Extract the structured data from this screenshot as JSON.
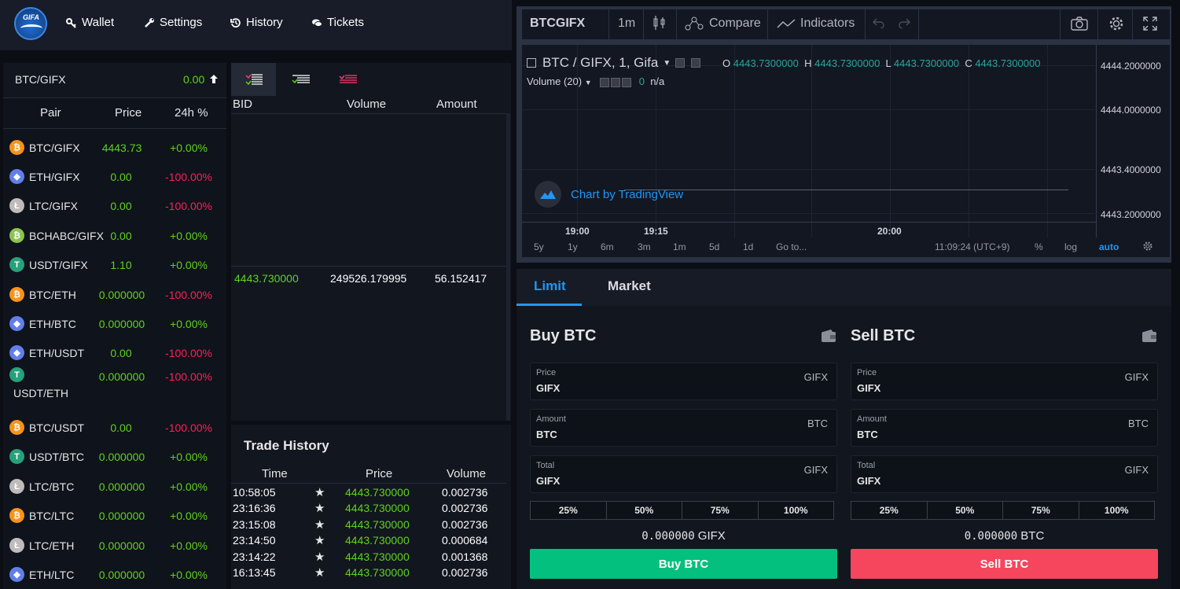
{
  "nav": {
    "logo_text": "GIFA",
    "items": [
      {
        "label": "Wallet",
        "icon": "key-icon"
      },
      {
        "label": "Settings",
        "icon": "wrench-icon"
      },
      {
        "label": "History",
        "icon": "history-icon"
      },
      {
        "label": "Tickets",
        "icon": "chat-icon"
      }
    ]
  },
  "market": {
    "selected_pair": "BTC/GIFX",
    "selected_value": "0.00",
    "columns": [
      "Pair",
      "Price",
      "24h %"
    ],
    "rows": [
      {
        "coin": "btc",
        "pair": "BTC/GIFX",
        "price": "4443.73",
        "change": "+0.00%"
      },
      {
        "coin": "eth",
        "pair": "ETH/GIFX",
        "price": "0.00",
        "change": "-100.00%"
      },
      {
        "coin": "ltc",
        "pair": "LTC/GIFX",
        "price": "0.00",
        "change": "-100.00%"
      },
      {
        "coin": "bch",
        "pair": "BCHABC/GIFX",
        "price": "0.00",
        "change": "+0.00%"
      },
      {
        "coin": "usdt",
        "pair": "USDT/GIFX",
        "price": "1.10",
        "change": "+0.00%"
      },
      {
        "coin": "btc",
        "pair": "BTC/ETH",
        "price": "0.000000",
        "change": "-100.00%"
      },
      {
        "coin": "eth",
        "pair": "ETH/BTC",
        "price": "0.000000",
        "change": "+0.00%"
      },
      {
        "coin": "eth",
        "pair": "ETH/USDT",
        "price": "0.00",
        "change": "-100.00%"
      },
      {
        "coin": "usdt",
        "pair": "USDT/ETH",
        "price": "0.000000",
        "change": "-100.00%"
      },
      {
        "coin": "btc",
        "pair": "BTC/USDT",
        "price": "0.00",
        "change": "-100.00%"
      },
      {
        "coin": "usdt",
        "pair": "USDT/BTC",
        "price": "0.000000",
        "change": "+0.00%"
      },
      {
        "coin": "ltc",
        "pair": "LTC/BTC",
        "price": "0.000000",
        "change": "+0.00%"
      },
      {
        "coin": "btc",
        "pair": "BTC/LTC",
        "price": "0.000000",
        "change": "+0.00%"
      },
      {
        "coin": "ltc",
        "pair": "LTC/ETH",
        "price": "0.000000",
        "change": "+0.00%"
      },
      {
        "coin": "eth",
        "pair": "ETH/LTC",
        "price": "0.000000",
        "change": "+0.00%"
      }
    ]
  },
  "orderbook": {
    "columns": [
      "BID",
      "Volume",
      "Amount"
    ],
    "row": {
      "bid": "4443.730000",
      "volume": "249526.179995",
      "amount": "56.152417"
    }
  },
  "trade_history": {
    "title": "Trade History",
    "columns": [
      "Time",
      "Price",
      "Volume"
    ],
    "rows": [
      {
        "time": "10:58:05",
        "price": "4443.730000",
        "volume": "0.002736"
      },
      {
        "time": "23:16:36",
        "price": "4443.730000",
        "volume": "0.002736"
      },
      {
        "time": "23:15:08",
        "price": "4443.730000",
        "volume": "0.002736"
      },
      {
        "time": "23:14:50",
        "price": "4443.730000",
        "volume": "0.000684"
      },
      {
        "time": "23:14:22",
        "price": "4443.730000",
        "volume": "0.001368"
      },
      {
        "time": "16:13:45",
        "price": "4443.730000",
        "volume": "0.002736"
      }
    ]
  },
  "chart": {
    "symbol": "BTCGIFX",
    "interval": "1m",
    "compare_label": "Compare",
    "indicators_label": "Indicators",
    "legend_title": "BTC / GIFX, 1, Gifa",
    "ohlc": {
      "o_label": "O",
      "o": "4443.7300000",
      "h_label": "H",
      "h": "4443.7300000",
      "l_label": "L",
      "l": "4443.7300000",
      "c_label": "C",
      "c": "4443.7300000"
    },
    "volume_label": "Volume (20)",
    "volume_value": "0",
    "volume_na": "n/a",
    "watermark": "Chart by TradingView",
    "price_labels": [
      "4444.2000000",
      "4444.0000000",
      "4443.4000000",
      "4443.2000000"
    ],
    "time_labels": [
      "19:00",
      "19:15",
      "20:00"
    ],
    "ranges": [
      "5y",
      "1y",
      "6m",
      "3m",
      "1m",
      "5d",
      "1d"
    ],
    "goto": "Go to...",
    "clock": "11:09:24 (UTC+9)",
    "pct": "%",
    "log": "log",
    "auto": "auto"
  },
  "trade_form": {
    "tabs": [
      "Limit",
      "Market"
    ],
    "buy": {
      "title": "Buy BTC",
      "fields": [
        {
          "label": "Price",
          "value": "GIFX",
          "unit": "GIFX"
        },
        {
          "label": "Amount",
          "value": "BTC",
          "unit": "BTC"
        },
        {
          "label": "Total",
          "value": "GIFX",
          "unit": "GIFX"
        }
      ],
      "percents": [
        "25%",
        "50%",
        "75%",
        "100%"
      ],
      "balance": "0.000000",
      "balance_unit": "GIFX",
      "button": "Buy BTC"
    },
    "sell": {
      "title": "Sell BTC",
      "fields": [
        {
          "label": "Price",
          "value": "GIFX",
          "unit": "GIFX"
        },
        {
          "label": "Amount",
          "value": "BTC",
          "unit": "BTC"
        },
        {
          "label": "Total",
          "value": "GIFX",
          "unit": "GIFX"
        }
      ],
      "percents": [
        "25%",
        "50%",
        "75%",
        "100%"
      ],
      "balance": "0.000000",
      "balance_unit": "BTC",
      "button": "Sell BTC"
    }
  },
  "colors": {
    "positive": "#5fd31c",
    "negative": "#ff1f58",
    "buy": "#03c07e",
    "sell": "#f5465d",
    "accent": "#2196f3"
  }
}
